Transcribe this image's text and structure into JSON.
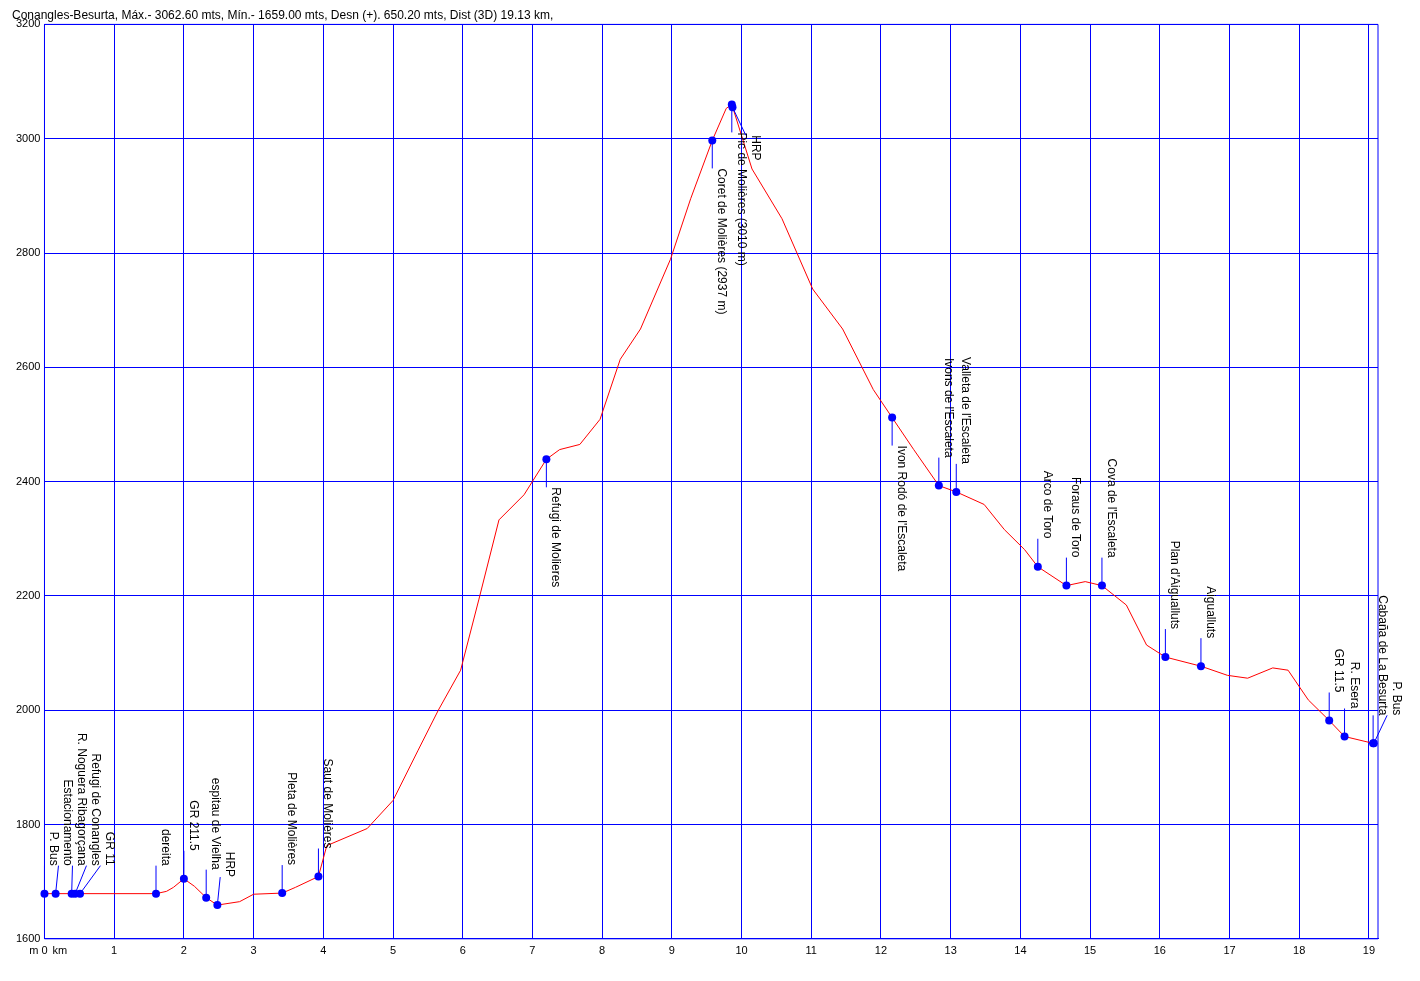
{
  "chart_data": {
    "type": "line",
    "title": "Conangles-Besurta, Máx.- 3062.60 mts, Mín.- 1659.00 mts, Desn (+). 650.20 mts, Dist (3D) 19.13 km,",
    "xlabel": "km",
    "ylabel": "m",
    "color": "#ff0000",
    "x": [
      0,
      0.16,
      0.39,
      0.44,
      0.51,
      1.0,
      1.6,
      1.75,
      1.85,
      2.0,
      2.15,
      2.32,
      2.48,
      2.8,
      3.0,
      3.41,
      3.6,
      3.93,
      4.05,
      4.63,
      5.0,
      5.36,
      5.65,
      5.97,
      6.23,
      6.52,
      6.88,
      7.2,
      7.39,
      7.68,
      7.97,
      8.26,
      8.55,
      8.98,
      9.27,
      9.58,
      9.78,
      9.86,
      10.15,
      10.58,
      11.02,
      11.45,
      11.89,
      12.16,
      12.47,
      12.83,
      13.08,
      13.48,
      13.77,
      14.06,
      14.25,
      14.66,
      14.93,
      15.17,
      15.52,
      15.81,
      16.08,
      16.59,
      16.97,
      17.26,
      17.62,
      17.84,
      18.13,
      18.43,
      18.65,
      19.06,
      19.07
    ],
    "values": [
      1679,
      1679,
      1679,
      1679,
      1679,
      1679,
      1679,
      1683,
      1690,
      1705,
      1692,
      1672,
      1659,
      1665,
      1678,
      1680,
      1690,
      1709,
      1763,
      1793,
      1842,
      1930,
      2000,
      2070,
      2193,
      2333,
      2377,
      2439,
      2456,
      2465,
      2509,
      2614,
      2667,
      2789,
      2895,
      2997,
      3053,
      3060,
      2947,
      2860,
      2737,
      2667,
      2561,
      2512,
      2456,
      2393,
      2382,
      2360,
      2316,
      2281,
      2251,
      2218,
      2225,
      2218,
      2184,
      2114,
      2093,
      2077,
      2061,
      2056,
      2074,
      2070,
      2018,
      1982,
      1954,
      1942,
      1942
    ],
    "xlim": [
      0,
      19.13
    ],
    "xticks": [
      0,
      1,
      2,
      3,
      4,
      5,
      6,
      7,
      8,
      9,
      10,
      11,
      12,
      13,
      14,
      15,
      16,
      17,
      18,
      19
    ],
    "ylim": [
      1600,
      3200
    ],
    "yticks": [
      1600,
      1800,
      2000,
      2200,
      2400,
      2600,
      2800,
      3000,
      3200
    ],
    "grid": true,
    "legend": false,
    "annotations": [
      {
        "text": "P. Bus",
        "x": 0,
        "y": 1679
      },
      {
        "text": "Estacionamento",
        "x": 0.16,
        "y": 1679
      },
      {
        "text": "R. Noguera Ribagorçana",
        "x": 0.39,
        "y": 1679
      },
      {
        "text": "Refugi de Conangles",
        "x": 0.44,
        "y": 1679
      },
      {
        "text": "GR 11",
        "x": 0.51,
        "y": 1679
      },
      {
        "text": "dereita",
        "x": 1.6,
        "y": 1679
      },
      {
        "text": "GR 211.5",
        "x": 2.0,
        "y": 1705
      },
      {
        "text": "espitau de Vielha",
        "x": 2.32,
        "y": 1672
      },
      {
        "text": "HRP",
        "x": 2.48,
        "y": 1659
      },
      {
        "text": "Pleta de Molières",
        "x": 3.41,
        "y": 1680
      },
      {
        "text": "Saut de Molières",
        "x": 3.93,
        "y": 1709
      },
      {
        "text": "Refugi de Molieres",
        "x": 7.2,
        "y": 2439
      },
      {
        "text": "Coret de Molières (2937 m)",
        "x": 9.58,
        "y": 2997
      },
      {
        "text": "Pic de Molières (3010 m)",
        "x": 9.86,
        "y": 3060
      },
      {
        "text": "HRP",
        "x": 9.87,
        "y": 3055
      },
      {
        "text": "Ivon Rodó de l'Escaleta",
        "x": 12.16,
        "y": 2512
      },
      {
        "text": "Ivons de l'Escaleta",
        "x": 12.83,
        "y": 2393
      },
      {
        "text": "Valleta de l'Escaleta",
        "x": 13.08,
        "y": 2382
      },
      {
        "text": "Arco de Toro",
        "x": 14.25,
        "y": 2251
      },
      {
        "text": "Foraus de Toro",
        "x": 14.66,
        "y": 2218
      },
      {
        "text": "Cova de l'Escaleta",
        "x": 15.17,
        "y": 2218
      },
      {
        "text": "Plan d'Aigualluts",
        "x": 16.08,
        "y": 2093
      },
      {
        "text": "Aigualluts",
        "x": 16.59,
        "y": 2077
      },
      {
        "text": "GR 11.5",
        "x": 18.43,
        "y": 1982
      },
      {
        "text": "R. Esera",
        "x": 18.65,
        "y": 1954
      },
      {
        "text": "Cabaña de La Besurta",
        "x": 19.06,
        "y": 1942
      },
      {
        "text": "P. Bus",
        "x": 19.07,
        "y": 1942
      }
    ]
  }
}
